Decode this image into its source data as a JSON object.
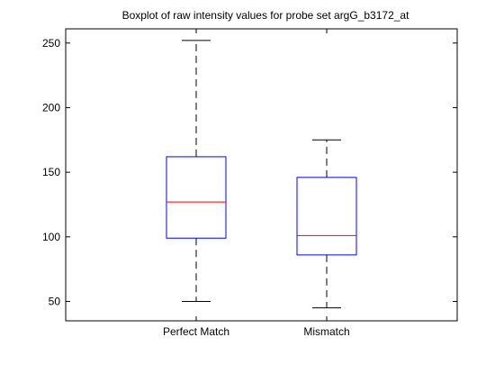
{
  "chart_data": {
    "type": "boxplot",
    "title": "Boxplot of raw intensity values for probe set argG_b3172_at",
    "xlabel": "",
    "ylabel": "",
    "categories": [
      "Perfect Match",
      "Mismatch"
    ],
    "boxes": [
      {
        "category": "Perfect Match",
        "whisker_low": 50,
        "q1": 99,
        "median": 127,
        "q3": 162,
        "whisker_high": 252
      },
      {
        "category": "Mismatch",
        "whisker_low": 45,
        "q1": 86,
        "median": 101,
        "q3": 146,
        "whisker_high": 175
      }
    ],
    "ylim": [
      35,
      261
    ],
    "yticks": [
      50,
      100,
      150,
      200,
      250
    ],
    "grid": false,
    "legend": "none",
    "colors": {
      "box": "#0000ff",
      "median": "#ff0000",
      "whisker": "#000000",
      "axes": "#000000"
    }
  }
}
